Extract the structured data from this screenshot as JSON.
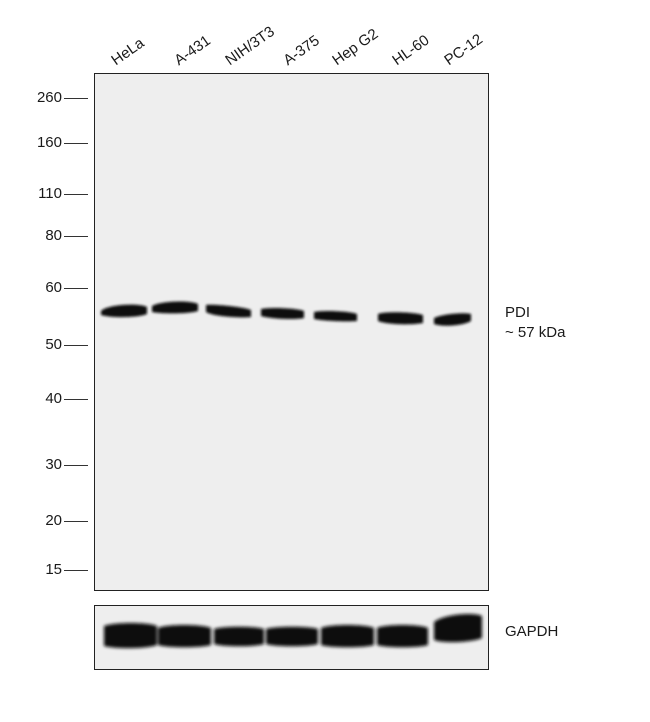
{
  "lanes": [
    "HeLa",
    "A-431",
    "NIH/3T3",
    "A-375",
    "Hep G2",
    "HL-60",
    "PC-12"
  ],
  "markers": [
    "260",
    "160",
    "110",
    "80",
    "60",
    "50",
    "40",
    "30",
    "20",
    "15"
  ],
  "target": {
    "name": "PDI",
    "size": "~ 57 kDa"
  },
  "loading_control": {
    "name": "GAPDH"
  },
  "colors": {
    "membrane": "#eeeeee",
    "band": "#111111",
    "frame": "#222222"
  }
}
